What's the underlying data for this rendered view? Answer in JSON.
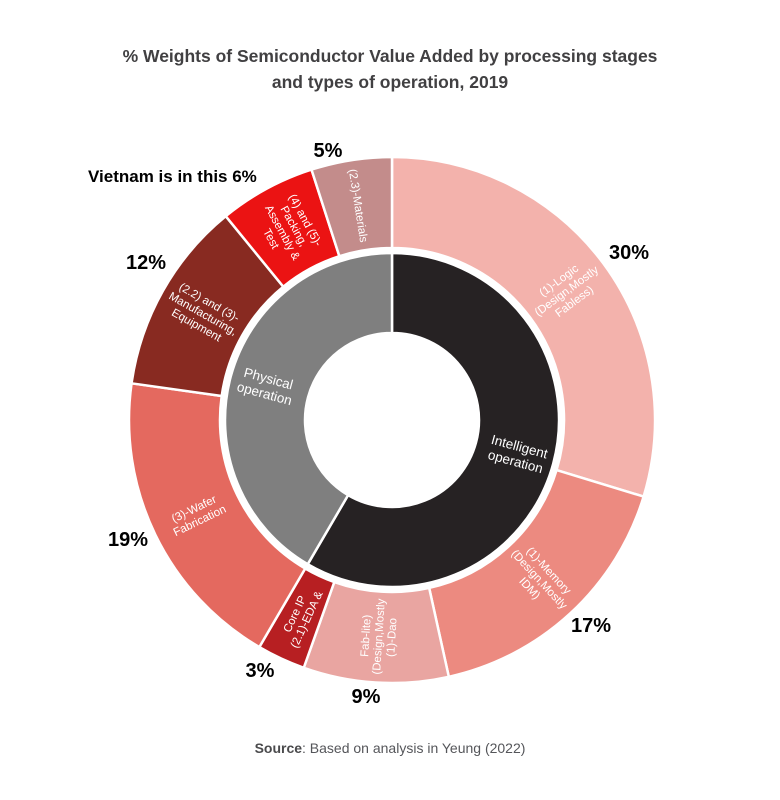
{
  "title": {
    "line1": "% Weights of Semiconductor Value Added by processing stages",
    "line2": "and types of operation, 2019"
  },
  "annotation": {
    "text": "Vietnam is in this 6%"
  },
  "source": {
    "label": "Source",
    "rest": ": Based on analysis in Yeung (2022)"
  },
  "chart_data": {
    "type": "pie",
    "variant": "two-ring-donut",
    "title": "% Weights of Semiconductor Value Added by processing stages and types of operation, 2019",
    "units_total": 101,
    "legend_position": "none",
    "outer_ring": [
      {
        "label": "(1)-Logic\n(Design,Mostly\nFabless)",
        "value": 30,
        "pct": "30%",
        "color": "#f3b2ac"
      },
      {
        "label": "(1)-Memory\n(Design,Mostly\nIDM)",
        "value": 17,
        "pct": "17%",
        "color": "#ec8a80"
      },
      {
        "label": "(1)-Dao\n(Design,Mostly\nFab-lite)",
        "value": 9,
        "pct": "9%",
        "color": "#e9a5a1"
      },
      {
        "label": "(2.1)-EDA &\nCore IP",
        "value": 3,
        "pct": "3%",
        "color": "#b71f22"
      },
      {
        "label": "(3)-Wafer\nFabrication",
        "value": 19,
        "pct": "19%",
        "color": "#e4695f"
      },
      {
        "label": "(2.2) and (3)-\nManufacturing,\nEquipment",
        "value": 12,
        "pct": "12%",
        "color": "#882a21"
      },
      {
        "label": "(4) and (5)-\nPacking,\nAssembly &\nTest",
        "value": 6,
        "pct": "",
        "color": "#eb1313"
      },
      {
        "label": "(2.3)-Materials",
        "value": 5,
        "pct": "5%",
        "color": "#c38c8b"
      }
    ],
    "inner_ring": [
      {
        "label": "Intelligent\noperation",
        "value": 59,
        "color": "#262223"
      },
      {
        "label": "Physical\noperation",
        "value": 42,
        "color": "#7f7f7f"
      }
    ]
  }
}
